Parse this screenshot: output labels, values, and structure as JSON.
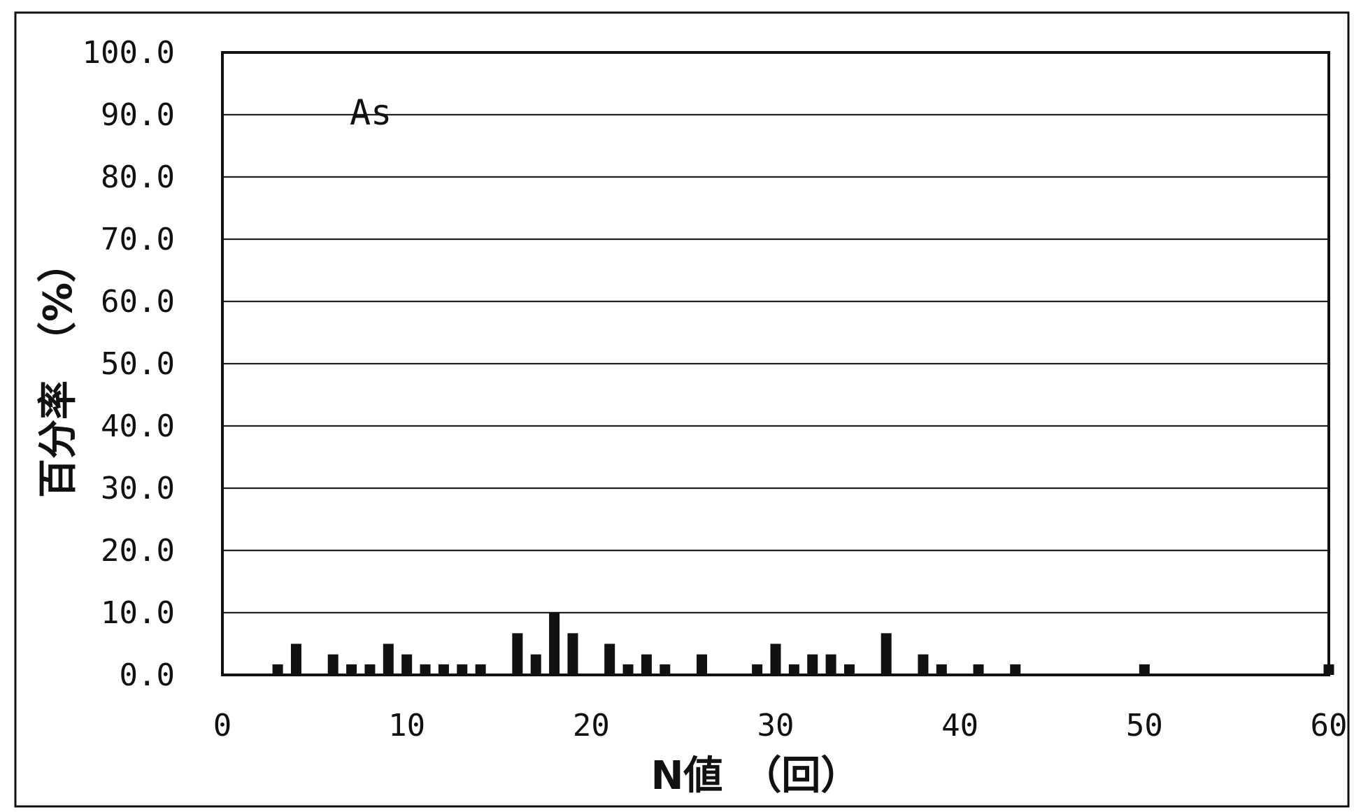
{
  "chart_data": {
    "type": "bar",
    "annotation": "As",
    "xlabel": "N値　（回）",
    "ylabel": "百分率　（%）",
    "xlim": [
      0,
      60
    ],
    "ylim": [
      0,
      100
    ],
    "x_ticks": [
      "0",
      "10",
      "20",
      "30",
      "40",
      "50",
      "60"
    ],
    "y_ticks": [
      "0.0",
      "10.0",
      "20.0",
      "30.0",
      "40.0",
      "50.0",
      "60.0",
      "70.0",
      "80.0",
      "90.0",
      "100.0"
    ],
    "grid": "horizontal",
    "x": [
      3,
      4,
      6,
      7,
      8,
      9,
      10,
      11,
      12,
      13,
      14,
      16,
      17,
      18,
      19,
      21,
      22,
      23,
      24,
      26,
      29,
      30,
      31,
      32,
      33,
      34,
      36,
      38,
      39,
      41,
      43,
      50,
      60
    ],
    "values": [
      1.7,
      5.0,
      3.3,
      1.7,
      1.7,
      5.0,
      3.3,
      1.7,
      1.7,
      1.7,
      1.7,
      6.7,
      3.3,
      10.0,
      6.7,
      5.0,
      1.7,
      3.3,
      1.7,
      3.3,
      1.7,
      5.0,
      1.7,
      3.3,
      3.3,
      1.7,
      6.7,
      3.3,
      1.7,
      1.7,
      1.7,
      1.7,
      1.7
    ],
    "colors": {
      "bar": "#111111",
      "grid": "#222222",
      "frame": "#111111"
    }
  }
}
